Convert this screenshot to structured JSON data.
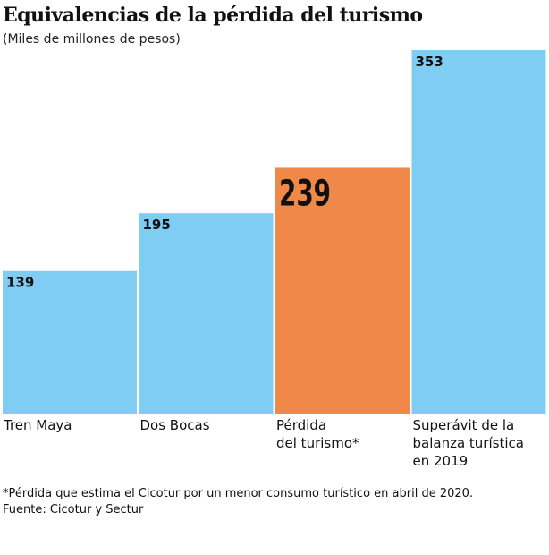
{
  "chart_data": {
    "type": "bar",
    "title": "Equivalencias de la pérdida del turismo",
    "subtitle": "(Miles de millones de pesos)",
    "categories": [
      "Tren Maya",
      "Dos Bocas",
      "Pérdida\ndel turismo*",
      "Superávit de la\nbalanza turística\nen 2019"
    ],
    "values": [
      139,
      195,
      239,
      353
    ],
    "colors": [
      "#80cdf4",
      "#80cdf4",
      "#f0884a",
      "#80cdf4"
    ],
    "footnote": "*Pérdida que estima el Cicotur por un menor consumo turístico en abril de 2020.",
    "source": "Fuente: Cicotur y Sectur"
  }
}
